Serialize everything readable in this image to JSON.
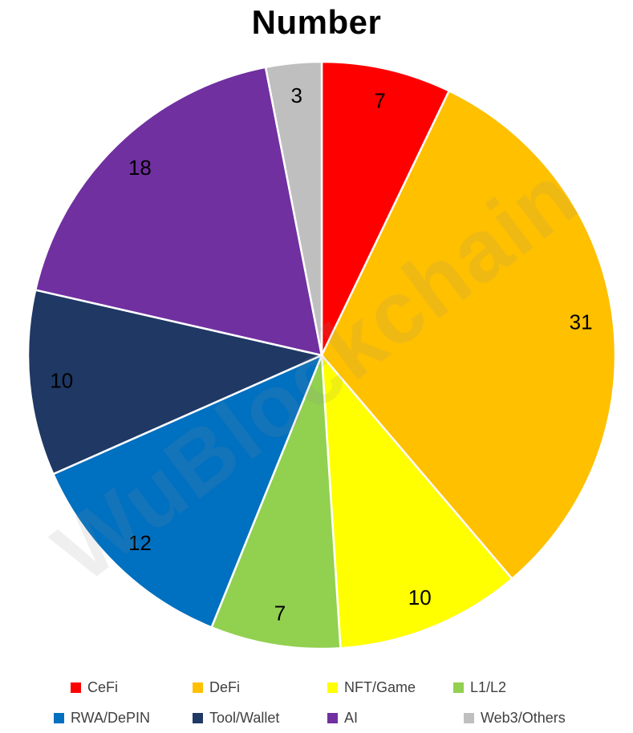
{
  "title": "Number",
  "watermark": "WuBlockchain",
  "chart_data": {
    "type": "pie",
    "title": "Number",
    "categories": [
      "CeFi",
      "DeFi",
      "NFT/Game",
      "L1/L2",
      "RWA/DePIN",
      "Tool/Wallet",
      "AI",
      "Web3/Others"
    ],
    "values": [
      7,
      31,
      10,
      7,
      12,
      10,
      18,
      3
    ],
    "colors": [
      "#FF0000",
      "#FFC000",
      "#FFFF00",
      "#92D050",
      "#0070C0",
      "#1F3864",
      "#7030A0",
      "#BFBFBF"
    ],
    "total": 98,
    "start_angle_deg": 0,
    "direction": "clockwise",
    "data_labels": "values",
    "label_color": "#000000",
    "separator_color": "#FFFFFF",
    "legend_position": "bottom",
    "legend_rows": [
      [
        "CeFi",
        "DeFi",
        "NFT/Game",
        "L1/L2"
      ],
      [
        "RWA/DePIN",
        "Tool/Wallet",
        "AI",
        "Web3/Others"
      ]
    ],
    "legend_text_color": "#404040"
  }
}
